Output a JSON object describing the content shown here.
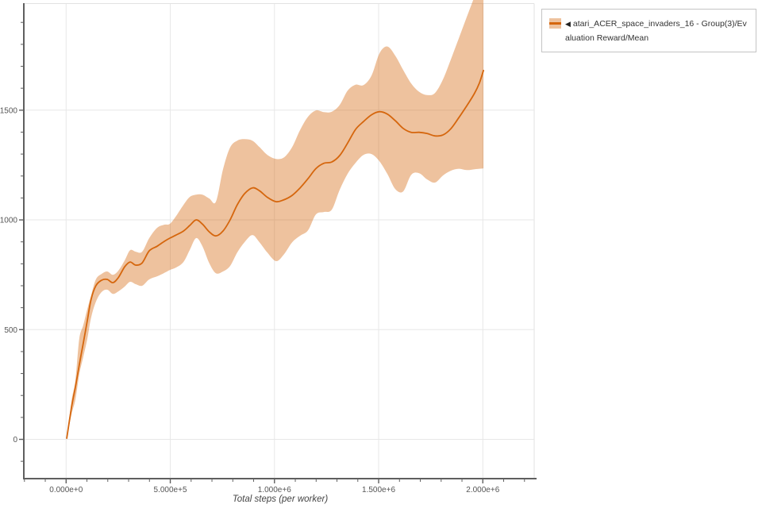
{
  "page": {
    "background": "#ffffff"
  },
  "colors": {
    "line": "#d5660d",
    "band": "rgba(213,102,13,0.40)",
    "grid": "#e7e7e7",
    "plot_border": "#e2e2e2",
    "spine": "#5f5f5f",
    "tick_label": "#555555",
    "axis_label": "#444444",
    "legend_border": "#c4c4c4",
    "legend_text": "#333333"
  },
  "legend": {
    "collapse_icon": "◀",
    "label": "atari_ACER_space_invaders_16 - Group(3)/Evaluation Reward/Mean"
  },
  "chart_data": {
    "type": "line",
    "title": "",
    "xlabel": "Total steps (per worker)",
    "ylabel": "",
    "xlim": [
      -203000,
      2258000
    ],
    "ylim": [
      -179,
      1984
    ],
    "grid": true,
    "legend_position": "top-right",
    "x_ticks": {
      "major_values": [
        0,
        500000,
        1000000,
        1500000,
        2000000
      ],
      "major_labels": [
        "0.000e+0",
        "5.000e+5",
        "1.000e+6",
        "1.500e+6",
        "2.000e+6"
      ],
      "minor_step": 100000
    },
    "y_ticks": {
      "major_values": [
        0,
        500,
        1000,
        1500
      ],
      "major_labels": [
        "0",
        "500",
        "1000",
        "1500"
      ],
      "minor_step": 100
    },
    "series": [
      {
        "name": "atari_ACER_space_invaders_16 - Group(3)/Evaluation Reward/Mean",
        "has_band": true,
        "x": [
          3000,
          26000,
          45000,
          63000,
          82000,
          101000,
          120000,
          143000,
          170000,
          197000,
          224000,
          250000,
          281000,
          307000,
          334000,
          365000,
          399000,
          437000,
          471000,
          498000,
          528000,
          563000,
          593000,
          624000,
          654000,
          688000,
          719000,
          753000,
          787000,
          821000,
          856000,
          894000,
          928000,
          966000,
          1008000,
          1046000,
          1085000,
          1123000,
          1161000,
          1199000,
          1237000,
          1275000,
          1313000,
          1351000,
          1389000,
          1427000,
          1466000,
          1504000,
          1542000,
          1580000,
          1618000,
          1656000,
          1694000,
          1732000,
          1770000,
          1808000,
          1846000,
          1885000,
          1923000,
          1961000,
          1984000,
          2003000
        ],
        "mean": [
          5,
          146,
          240,
          338,
          436,
          537,
          638,
          700,
          725,
          729,
          714,
          736,
          786,
          808,
          794,
          804,
          859,
          880,
          902,
          917,
          931,
          949,
          974,
          1000,
          981,
          945,
          927,
          949,
          1000,
          1068,
          1119,
          1146,
          1133,
          1103,
          1083,
          1092,
          1112,
          1146,
          1188,
          1234,
          1258,
          1264,
          1293,
          1350,
          1412,
          1448,
          1479,
          1493,
          1482,
          1452,
          1417,
          1399,
          1399,
          1394,
          1383,
          1387,
          1415,
          1466,
          1520,
          1578,
          1625,
          1681
        ],
        "lower": [
          5,
          114,
          183,
          295,
          374,
          454,
          555,
          627,
          671,
          682,
          663,
          674,
          696,
          718,
          707,
          700,
          729,
          743,
          758,
          772,
          783,
          808,
          862,
          917,
          880,
          801,
          757,
          765,
          790,
          851,
          898,
          931,
          898,
          851,
          812,
          844,
          898,
          928,
          952,
          1025,
          1036,
          1047,
          1137,
          1210,
          1260,
          1296,
          1300,
          1267,
          1209,
          1140,
          1130,
          1205,
          1213,
          1185,
          1170,
          1202,
          1224,
          1233,
          1227,
          1231,
          1233,
          1235
        ],
        "upper": [
          5,
          175,
          273,
          457,
          519,
          591,
          656,
          729,
          754,
          765,
          750,
          768,
          815,
          862,
          855,
          855,
          917,
          964,
          978,
          982,
          1018,
          1068,
          1104,
          1115,
          1115,
          1097,
          1083,
          1230,
          1330,
          1361,
          1368,
          1361,
          1332,
          1296,
          1278,
          1285,
          1332,
          1410,
          1470,
          1499,
          1491,
          1493,
          1524,
          1589,
          1616,
          1614,
          1658,
          1759,
          1790,
          1748,
          1683,
          1622,
          1584,
          1569,
          1578,
          1639,
          1730,
          1828,
          1925,
          2020,
          2080,
          2120
        ]
      }
    ]
  }
}
